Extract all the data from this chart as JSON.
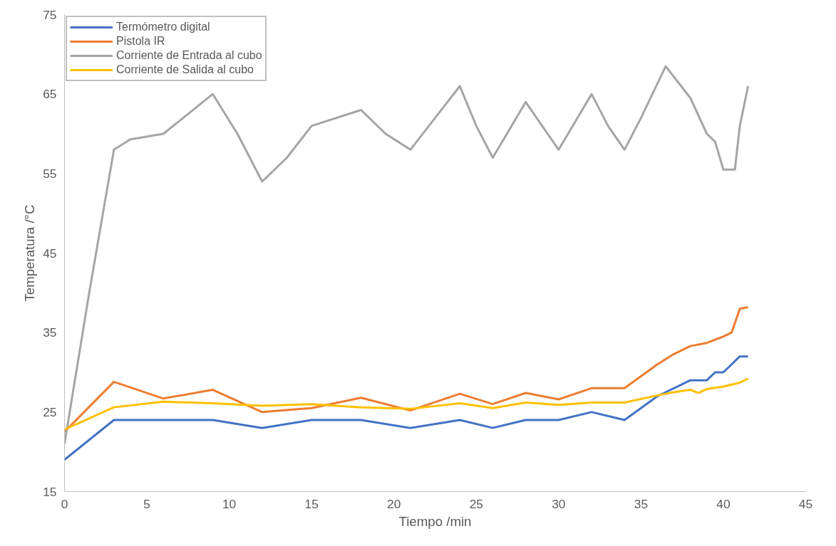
{
  "chart_data": {
    "type": "line",
    "xlabel": "Tiempo /min",
    "ylabel": "Temperatura /°C",
    "xlim": [
      0,
      45
    ],
    "xticks": [
      0,
      5,
      10,
      15,
      20,
      25,
      30,
      35,
      40,
      45
    ],
    "ylim": [
      15,
      75
    ],
    "yticks": [
      15,
      25,
      35,
      45,
      55,
      65,
      75
    ],
    "grid": false,
    "legend": "top left",
    "marker": "none",
    "line_style": "solid",
    "series": [
      {
        "name": "Termómetro digital",
        "color": "#4472c4",
        "x": [
          0,
          3,
          6,
          9,
          12,
          15,
          18,
          21,
          24,
          26,
          28,
          30,
          32,
          34,
          36,
          37,
          38,
          39,
          39.5,
          40,
          41,
          41.5
        ],
        "values": [
          19,
          24,
          24,
          24,
          23,
          24,
          24,
          23,
          24,
          23,
          24,
          24,
          25,
          24,
          27,
          28,
          29,
          29,
          30,
          30,
          32,
          32
        ]
      },
      {
        "name": "Pistola IR",
        "color": "#ed7d31",
        "x": [
          0,
          3,
          6,
          9,
          12,
          15,
          18,
          21,
          24,
          26,
          28,
          30,
          32,
          34,
          36,
          37,
          38,
          39,
          40,
          40.5,
          41,
          41.5
        ],
        "values": [
          22.5,
          28.8,
          26.7,
          27.8,
          25,
          25.5,
          26.8,
          25.2,
          27.3,
          26,
          27.4,
          26.6,
          28,
          28,
          31,
          32.3,
          33.3,
          33.7,
          34.5,
          35,
          38,
          38.2
        ]
      },
      {
        "name": "Corriente de Entrada al cubo",
        "color": "#a5a5a5",
        "x": [
          0,
          1.5,
          3,
          4,
          6,
          7.5,
          9,
          10.5,
          12,
          13.5,
          15,
          18,
          19.5,
          21,
          22.5,
          24,
          25,
          26,
          27,
          28,
          29,
          30,
          31,
          32,
          33,
          34,
          35,
          36.5,
          38,
          39,
          39.5,
          40,
          40.7,
          41,
          41.5
        ],
        "values": [
          21,
          40,
          58,
          59.3,
          60,
          62.5,
          65,
          60,
          54,
          57,
          61,
          63,
          60,
          58,
          62,
          66,
          61,
          57,
          60.5,
          64,
          61,
          58,
          61.5,
          65,
          61,
          58,
          62,
          68.5,
          64.5,
          60,
          59,
          55.5,
          55.5,
          61,
          66
        ]
      },
      {
        "name": "Corriente de Salida al cubo",
        "color": "#ffc000",
        "x": [
          0,
          3,
          6,
          9,
          12,
          15,
          18,
          21,
          24,
          26,
          28,
          30,
          32,
          34,
          36,
          37,
          38,
          38.5,
          39,
          40,
          41,
          41.5
        ],
        "values": [
          22.8,
          25.6,
          26.3,
          26.1,
          25.8,
          26,
          25.6,
          25.4,
          26.1,
          25.5,
          26.2,
          25.9,
          26.2,
          26.2,
          27.1,
          27.5,
          27.8,
          27.4,
          27.9,
          28.2,
          28.7,
          29.2
        ]
      }
    ]
  }
}
